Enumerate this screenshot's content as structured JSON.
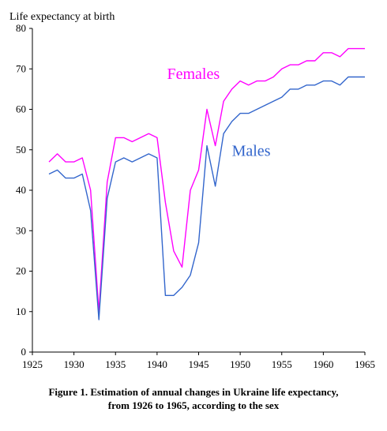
{
  "chart_data": {
    "type": "line",
    "title": "",
    "ylabel": "Life expectancy at birth",
    "xlabel": "",
    "xlim": [
      1925,
      1965
    ],
    "ylim": [
      0,
      80
    ],
    "xticks": [
      1925,
      1930,
      1935,
      1940,
      1945,
      1950,
      1955,
      1960,
      1965
    ],
    "yticks": [
      0,
      10,
      20,
      30,
      40,
      50,
      60,
      70,
      80
    ],
    "grid": false,
    "caption_line1": "Figure 1. Estimation of annual changes in Ukraine life expectancy,",
    "caption_line2": "from 1926 to 1965, according to the sex",
    "series": [
      {
        "name": "Females",
        "color": "#ff00ff",
        "x": [
          1927,
          1928,
          1929,
          1930,
          1931,
          1932,
          1933,
          1934,
          1935,
          1936,
          1937,
          1938,
          1939,
          1940,
          1941,
          1942,
          1943,
          1944,
          1945,
          1946,
          1947,
          1948,
          1949,
          1950,
          1951,
          1952,
          1953,
          1954,
          1955,
          1956,
          1957,
          1958,
          1959,
          1960,
          1961,
          1962,
          1963,
          1964,
          1965
        ],
        "values": [
          47,
          49,
          47,
          47,
          48,
          40,
          10,
          42,
          53,
          53,
          52,
          53,
          54,
          53,
          37,
          25,
          21,
          40,
          45,
          60,
          51,
          62,
          65,
          67,
          66,
          67,
          67,
          68,
          70,
          71,
          71,
          72,
          72,
          74,
          74,
          73,
          75,
          75,
          75
        ]
      },
      {
        "name": "Males",
        "color": "#3366cc",
        "x": [
          1927,
          1928,
          1929,
          1930,
          1931,
          1932,
          1933,
          1934,
          1935,
          1936,
          1937,
          1938,
          1939,
          1940,
          1941,
          1942,
          1943,
          1944,
          1945,
          1946,
          1947,
          1948,
          1949,
          1950,
          1951,
          1952,
          1953,
          1954,
          1955,
          1956,
          1957,
          1958,
          1959,
          1960,
          1961,
          1962,
          1963,
          1964,
          1965
        ],
        "values": [
          44,
          45,
          43,
          43,
          44,
          35,
          8,
          38,
          47,
          48,
          47,
          48,
          49,
          48,
          14,
          14,
          16,
          19,
          27,
          51,
          41,
          54,
          57,
          59,
          59,
          60,
          61,
          62,
          63,
          65,
          65,
          66,
          66,
          67,
          67,
          66,
          68,
          68,
          68
        ]
      }
    ]
  }
}
